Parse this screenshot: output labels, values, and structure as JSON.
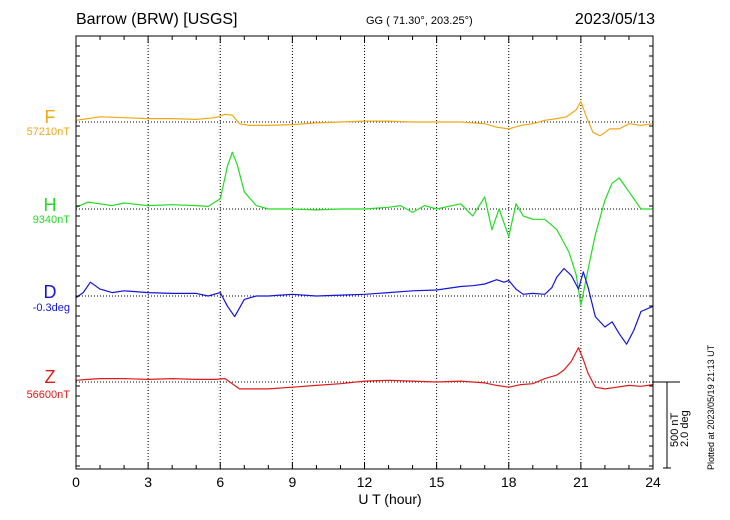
{
  "header": {
    "station": "Barrow (BRW)  [USGS]",
    "coords": "GG ( 71.30°, 203.25°)",
    "date": "2023/05/13"
  },
  "footer": {
    "plotted": "Plotted at 2023/05/19 21:13 UT"
  },
  "chart_data": {
    "type": "line",
    "xlabel": "U T (hour)",
    "xlim": [
      0,
      24
    ],
    "xticks": [
      "0",
      "3",
      "6",
      "9",
      "12",
      "15",
      "18",
      "21",
      "24"
    ],
    "grid": true,
    "scale": {
      "field": "500 nT",
      "angle": "2.0 deg"
    },
    "series": [
      {
        "name": "F",
        "baseline_label": "57210nT",
        "color": "#f0a818",
        "x": [
          0,
          0.5,
          1,
          2,
          3,
          4,
          5,
          5.8,
          6.2,
          6.5,
          6.8,
          7.2,
          8,
          9,
          10,
          11,
          12,
          13,
          14,
          15,
          16,
          17,
          17.5,
          18,
          18.5,
          19,
          19.5,
          20,
          20.4,
          20.8,
          21.0,
          21.2,
          21.5,
          21.8,
          22.2,
          22.6,
          23,
          23.5,
          24
        ],
        "y": [
          10,
          20,
          30,
          25,
          20,
          20,
          15,
          25,
          45,
          40,
          -10,
          -20,
          -20,
          -15,
          -5,
          0,
          5,
          5,
          0,
          0,
          0,
          -10,
          -30,
          -40,
          -20,
          -10,
          10,
          20,
          30,
          70,
          120,
          40,
          -60,
          -80,
          -40,
          -40,
          -10,
          -20,
          -10
        ]
      },
      {
        "name": "H",
        "baseline_label": "9340nT",
        "color": "#22dd22",
        "x": [
          0,
          0.5,
          1,
          1.5,
          2,
          3,
          4,
          5,
          5.5,
          6.0,
          6.3,
          6.5,
          6.7,
          7.0,
          7.5,
          8,
          9,
          10,
          11,
          12,
          13,
          13.5,
          14,
          14.5,
          15,
          16,
          16.5,
          17,
          17.3,
          17.6,
          18,
          18.3,
          18.6,
          19,
          19.5,
          20,
          20.5,
          20.8,
          21.0,
          21.3,
          21.6,
          22.0,
          22.3,
          22.6,
          23,
          23.5,
          24
        ],
        "y": [
          10,
          40,
          30,
          20,
          35,
          20,
          25,
          20,
          15,
          60,
          250,
          330,
          260,
          100,
          20,
          0,
          0,
          -5,
          0,
          0,
          10,
          20,
          -20,
          20,
          0,
          30,
          -40,
          70,
          -120,
          0,
          -160,
          30,
          -40,
          -60,
          -60,
          -120,
          -250,
          -380,
          -560,
          -350,
          -150,
          50,
          150,
          180,
          100,
          0,
          0
        ]
      },
      {
        "name": "D",
        "baseline_label": "-0.3deg",
        "color": "#1414dc",
        "x": [
          0,
          0.3,
          0.6,
          1,
          1.5,
          2,
          3,
          4,
          5,
          5.5,
          6.0,
          6.3,
          6.6,
          7.0,
          7.5,
          8,
          8.5,
          9,
          10,
          11,
          12,
          13,
          14,
          15,
          16,
          16.5,
          17,
          17.5,
          17.8,
          18,
          18.3,
          18.6,
          19,
          19.5,
          19.8,
          20.0,
          20.3,
          20.6,
          20.9,
          21.1,
          21.3,
          21.6,
          22.0,
          22.3,
          22.6,
          22.9,
          23.2,
          23.5,
          24
        ],
        "y": [
          -10,
          20,
          80,
          40,
          20,
          30,
          20,
          15,
          15,
          0,
          20,
          -60,
          -120,
          -20,
          0,
          0,
          5,
          10,
          0,
          5,
          10,
          20,
          30,
          35,
          55,
          60,
          70,
          95,
          80,
          90,
          40,
          10,
          15,
          10,
          50,
          110,
          160,
          120,
          40,
          140,
          50,
          -120,
          -180,
          -150,
          -220,
          -280,
          -200,
          -90,
          -60
        ]
      },
      {
        "name": "Z",
        "baseline_label": "56600nT",
        "color": "#e01a1a",
        "x": [
          0,
          0.5,
          1,
          2,
          3,
          4,
          5,
          5.8,
          6.2,
          6.5,
          6.8,
          7.2,
          8,
          9,
          10,
          11,
          12,
          13,
          14,
          15,
          16,
          17,
          17.5,
          18,
          18.5,
          19,
          19.5,
          20,
          20.3,
          20.6,
          20.9,
          21.1,
          21.3,
          21.6,
          22.0,
          22.5,
          23,
          23.5,
          24
        ],
        "y": [
          10,
          15,
          20,
          20,
          15,
          20,
          15,
          15,
          20,
          -10,
          -40,
          -40,
          -40,
          -30,
          -20,
          -10,
          5,
          10,
          5,
          0,
          5,
          -5,
          -20,
          -30,
          -15,
          -10,
          20,
          40,
          70,
          120,
          200,
          130,
          50,
          -30,
          -40,
          -30,
          -20,
          -25,
          -15
        ]
      }
    ]
  }
}
